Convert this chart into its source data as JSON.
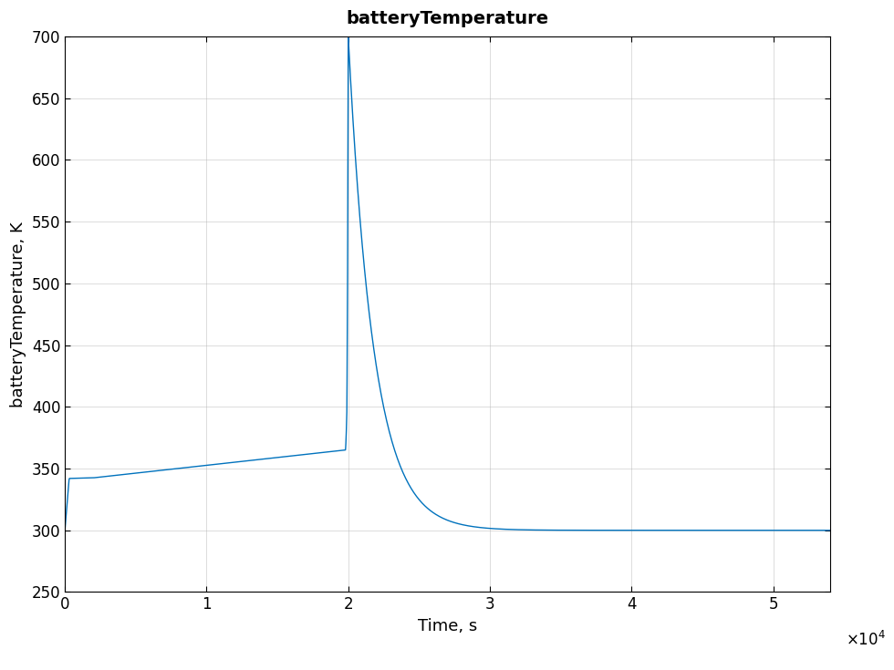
{
  "title": "batteryTemperature",
  "xlabel": "Time, s",
  "ylabel": "batteryTemperature, K",
  "line_color": "#0072BD",
  "line_width": 1.0,
  "xlim": [
    0,
    54000
  ],
  "ylim": [
    250,
    700
  ],
  "yticks": [
    250,
    300,
    350,
    400,
    450,
    500,
    550,
    600,
    650,
    700
  ],
  "xticks": [
    0,
    10000,
    20000,
    30000,
    40000,
    50000
  ],
  "xtick_labels": [
    "0",
    "1",
    "2",
    "3",
    "4",
    "5"
  ],
  "background_color": "#ffffff",
  "grid_color": "#b0b0b0",
  "title_fontsize": 14,
  "axis_fontsize": 13,
  "tick_fontsize": 12
}
